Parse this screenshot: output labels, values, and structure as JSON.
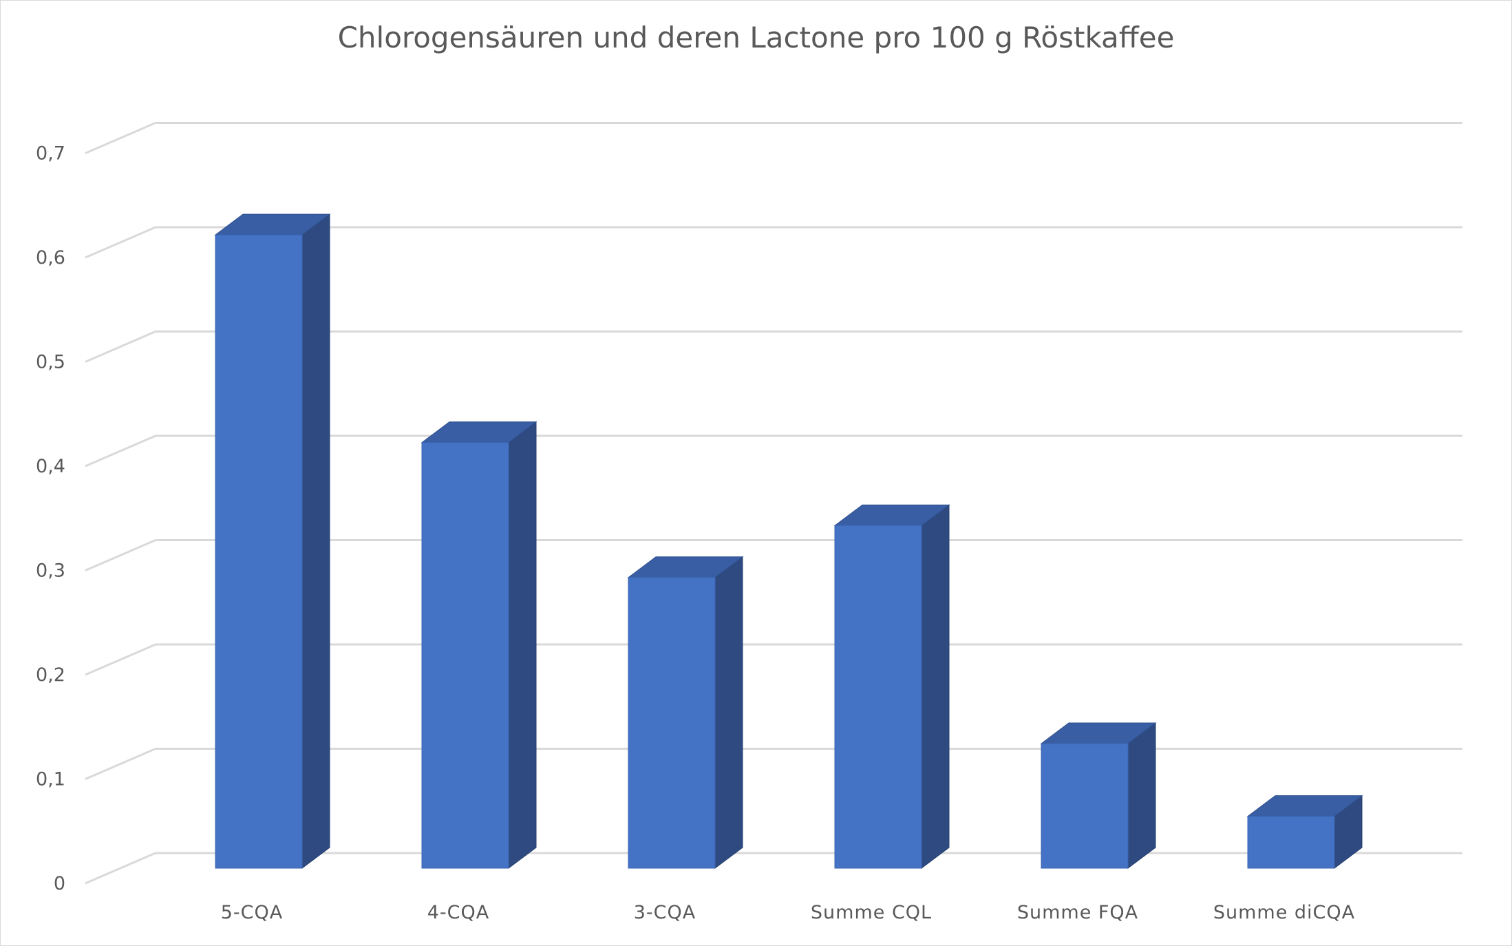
{
  "chart_data": {
    "type": "bar",
    "style": "3d-column",
    "title": "Chlorogensäuren und deren Lactone pro 100 g Röstkaffee",
    "xlabel": "",
    "ylabel": "",
    "categories": [
      "5-CQA",
      "4-CQA",
      "3-CQA",
      "Summe CQL",
      "Summe FQA",
      "Summe diCQA"
    ],
    "values": [
      0.61,
      0.41,
      0.28,
      0.33,
      0.12,
      0.05
    ],
    "ylim": [
      0,
      0.7
    ],
    "yticks": [
      "0",
      "0,1",
      "0,2",
      "0,3",
      "0,4",
      "0,5",
      "0,6",
      "0,7"
    ],
    "grid": true,
    "legend": "none",
    "colors": {
      "bar_front": "#4472c4",
      "bar_side": "#2e4a80",
      "bar_top": "#3a5ea3",
      "grid": "#d9d9d9",
      "text": "#595959"
    }
  }
}
